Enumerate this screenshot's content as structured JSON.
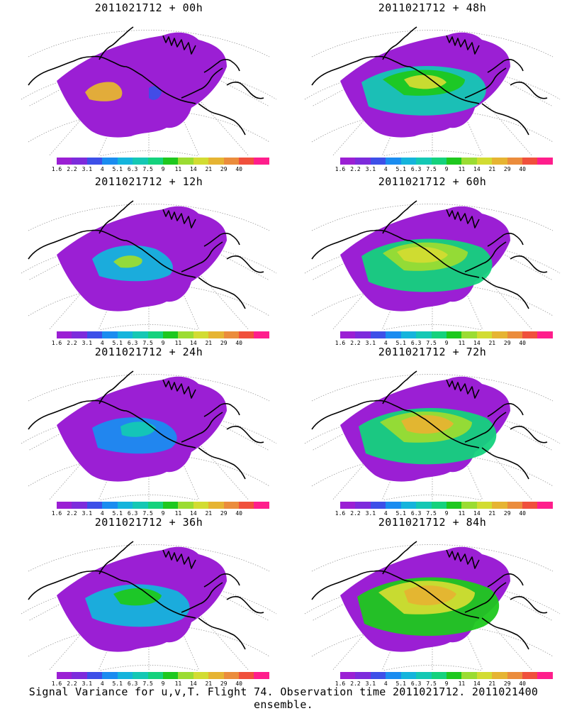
{
  "figure": {
    "caption": "Signal Variance for u,v,T. Flight 74. Observation time 2011021712. 2011021400 ensemble."
  },
  "colorbar": {
    "tick_labels": [
      "1.6",
      "2.2",
      "3.1",
      "4",
      "5.1",
      "6.3",
      "7.5",
      "9",
      "11",
      "14",
      "21",
      "29",
      "40"
    ],
    "colors": [
      "#9b1fd4",
      "#7d2bdc",
      "#3d4fe8",
      "#1a8cf0",
      "#14b4dc",
      "#14c8b4",
      "#14d27d",
      "#1ec81e",
      "#9bdc32",
      "#d2dc32",
      "#e6b432",
      "#eb8c3c",
      "#f0503c",
      "#ff1e8c"
    ]
  },
  "panels": [
    {
      "title": "2011021712 + 00h",
      "level": 0
    },
    {
      "title": "2011021712 + 48h",
      "level": 4
    },
    {
      "title": "2011021712 + 12h",
      "level": 1
    },
    {
      "title": "2011021712 + 60h",
      "level": 5
    },
    {
      "title": "2011021712 + 24h",
      "level": 2
    },
    {
      "title": "2011021712 + 72h",
      "level": 6
    },
    {
      "title": "2011021712 + 36h",
      "level": 3
    },
    {
      "title": "2011021712 + 84h",
      "level": 7
    }
  ]
}
